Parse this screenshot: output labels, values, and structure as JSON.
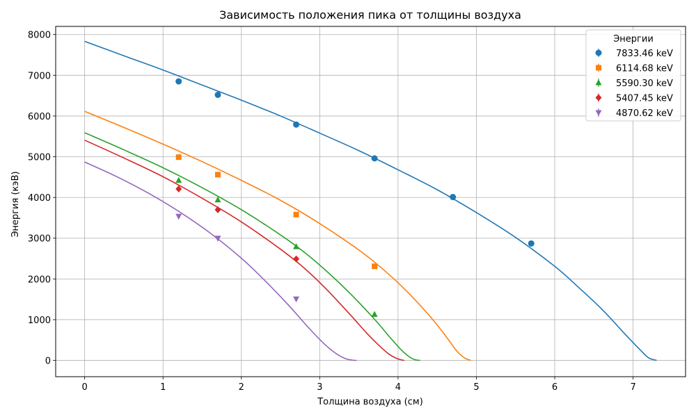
{
  "chart_data": {
    "type": "scatter",
    "title": "Зависимость положения пика от толщины воздуха",
    "xlabel": "Толщина воздуха (см)",
    "ylabel": "Энергия (кэВ)",
    "xlim": [
      -0.37,
      7.67
    ],
    "ylim": [
      -400,
      8200
    ],
    "xticks": [
      0,
      1,
      2,
      3,
      4,
      5,
      6,
      7
    ],
    "yticks": [
      0,
      1000,
      2000,
      3000,
      4000,
      5000,
      6000,
      7000,
      8000
    ],
    "grid": true,
    "legend": {
      "title": "Энергии",
      "placement": "top-right"
    },
    "series": [
      {
        "name": "7833.46 keV",
        "color": "#1f77b4",
        "marker": "circle",
        "x": [
          1.2,
          1.7,
          2.7,
          3.7,
          4.7,
          5.7
        ],
        "y": [
          6850,
          6520,
          5790,
          4960,
          4010,
          2870
        ],
        "fit_x": [
          0,
          0.5,
          1,
          1.5,
          2,
          2.5,
          3,
          3.5,
          4,
          4.5,
          5,
          5.5,
          6,
          6.3,
          6.6,
          6.9,
          7.1,
          7.2,
          7.3
        ],
        "fit_y": [
          7833,
          7480,
          7130,
          6760,
          6390,
          6000,
          5580,
          5150,
          4680,
          4190,
          3630,
          3020,
          2310,
          1800,
          1260,
          640,
          240,
          60,
          0
        ]
      },
      {
        "name": "6114.68 keV",
        "color": "#ff7f0e",
        "marker": "square",
        "x": [
          1.2,
          1.7,
          2.7,
          3.7
        ],
        "y": [
          4990,
          4560,
          3580,
          2310
        ],
        "fit_x": [
          0,
          0.5,
          1,
          1.5,
          2,
          2.5,
          3,
          3.5,
          3.8,
          4.1,
          4.4,
          4.6,
          4.75,
          4.85,
          4.93
        ],
        "fit_y": [
          6115,
          5720,
          5310,
          4880,
          4420,
          3930,
          3360,
          2710,
          2250,
          1720,
          1100,
          620,
          230,
          60,
          0
        ]
      },
      {
        "name": "5590.30 keV",
        "color": "#2ca02c",
        "marker": "triangle-up",
        "x": [
          1.2,
          1.7,
          2.7,
          3.7
        ],
        "y": [
          4420,
          3940,
          2790,
          1130
        ],
        "fit_x": [
          0,
          0.5,
          1,
          1.5,
          2,
          2.5,
          2.8,
          3.1,
          3.4,
          3.7,
          3.9,
          4.05,
          4.15,
          4.22,
          4.28
        ],
        "fit_y": [
          5590,
          5170,
          4730,
          4240,
          3700,
          3080,
          2660,
          2170,
          1620,
          1010,
          560,
          240,
          80,
          15,
          0
        ]
      },
      {
        "name": "5407.45 keV",
        "color": "#d62728",
        "marker": "diamond",
        "x": [
          1.2,
          1.7,
          2.7
        ],
        "y": [
          4210,
          3700,
          2490
        ],
        "fit_x": [
          0,
          0.5,
          1,
          1.5,
          2,
          2.5,
          2.8,
          3.1,
          3.4,
          3.6,
          3.75,
          3.88,
          3.98,
          4.05,
          4.08
        ],
        "fit_y": [
          5407,
          4970,
          4510,
          3980,
          3400,
          2730,
          2270,
          1720,
          1100,
          670,
          380,
          160,
          50,
          10,
          0
        ]
      },
      {
        "name": "4870.62 keV",
        "color": "#9467bd",
        "marker": "triangle-down",
        "x": [
          1.2,
          1.7,
          2.7
        ],
        "y": [
          3540,
          3000,
          1510
        ],
        "fit_x": [
          0,
          0.4,
          0.8,
          1.2,
          1.6,
          2,
          2.3,
          2.6,
          2.85,
          3.05,
          3.2,
          3.32,
          3.41,
          3.47
        ],
        "fit_y": [
          4871,
          4520,
          4120,
          3660,
          3130,
          2510,
          1960,
          1360,
          820,
          420,
          180,
          50,
          8,
          0
        ]
      }
    ]
  }
}
